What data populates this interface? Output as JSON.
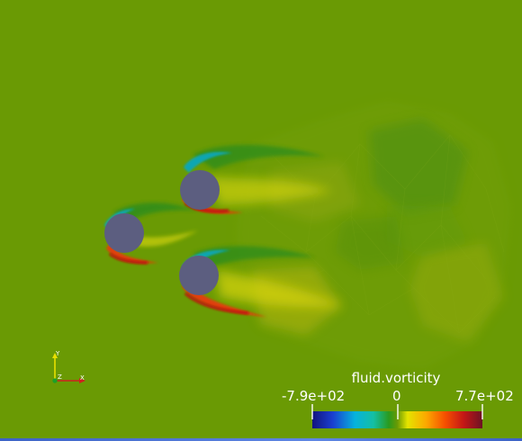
{
  "legend": {
    "title": "fluid.vorticity",
    "min_label": "-7.9e+02",
    "mid_label": "0",
    "max_label": "7.7e+02",
    "range": [
      -790,
      770
    ]
  },
  "axes": {
    "x_label": "X",
    "y_label": "Y",
    "z_label": "Z"
  },
  "colors": {
    "background": "#6a9a04",
    "cylinder": "#5c5e80",
    "positive_vorticity": "#c01008",
    "negative_vorticity": "#0aa6b2",
    "colormap": [
      "#13137e",
      "#1a3fd0",
      "#06b2dc",
      "#14bfa4",
      "#2a9a1e",
      "#6a9a04",
      "#e4e400",
      "#fca800",
      "#f65000",
      "#c41616",
      "#6c1224"
    ]
  },
  "cylinders": [
    "upper-cylinder",
    "left-cylinder",
    "lower-cylinder"
  ]
}
